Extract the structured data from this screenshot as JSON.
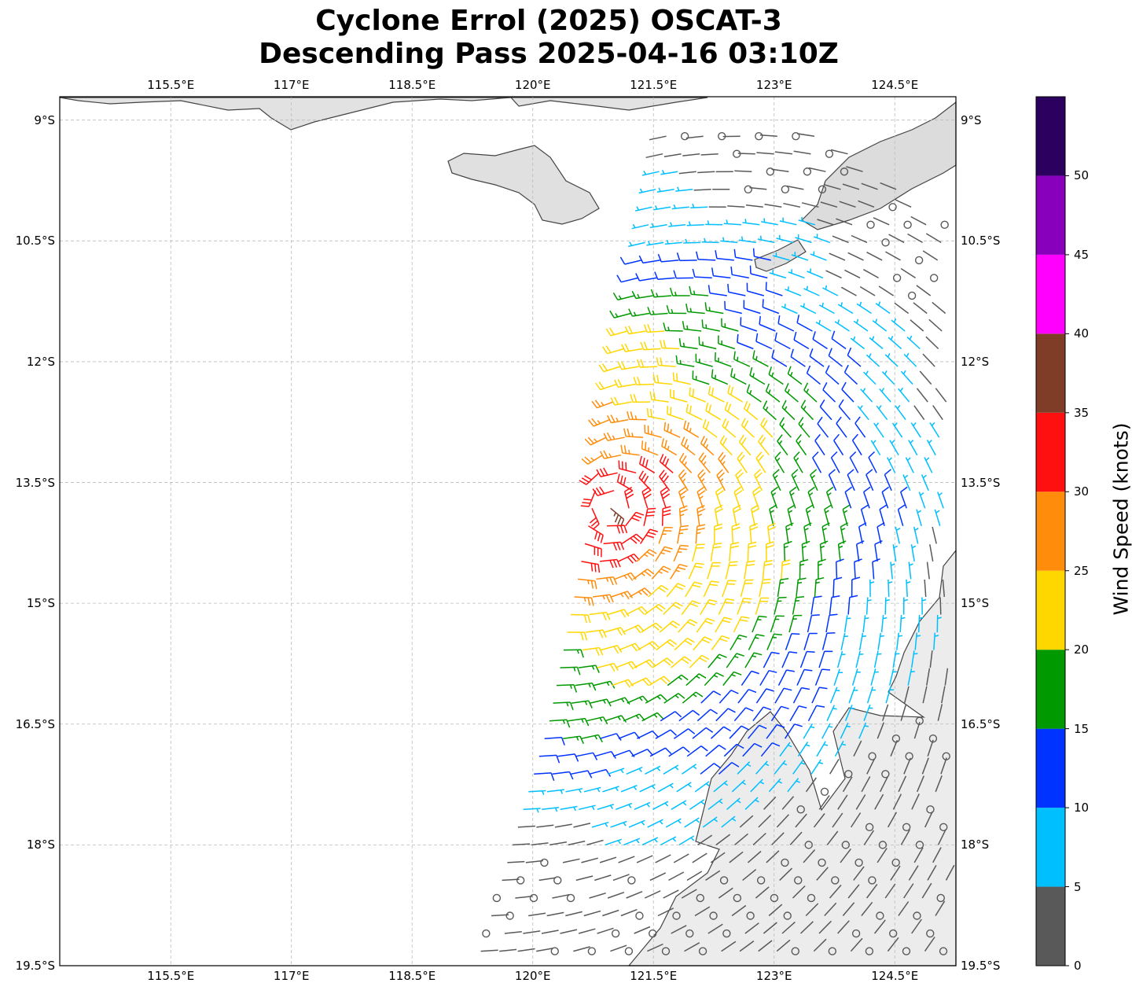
{
  "title": {
    "line1": "Cyclone Errol (2025) OSCAT-3",
    "line2": "Descending Pass 2025-04-16 03:10Z"
  },
  "map": {
    "lon_ticks": [
      115.5,
      117,
      118.5,
      120,
      121.5,
      123,
      124.5
    ],
    "lon_labels": [
      "115.5°E",
      "117°E",
      "118.5°E",
      "120°E",
      "121.5°E",
      "123°E",
      "124.5°E"
    ],
    "lat_ticks": [
      9,
      10.5,
      12,
      13.5,
      15,
      16.5,
      18,
      19.5
    ],
    "lat_labels": [
      "9°S",
      "10.5°S",
      "12°S",
      "13.5°S",
      "15°S",
      "16.5°S",
      "18°S",
      "19.5°S"
    ],
    "extent": {
      "lon_min": 114.12,
      "lon_max": 125.26,
      "lat_min": 8.71,
      "lat_max": 19.5
    },
    "storm_center": {
      "lon": 121.0,
      "lat": 13.8
    }
  },
  "colorbar": {
    "label": "Wind Speed (knots)",
    "range": [
      0,
      55
    ],
    "ticks": [
      "0",
      "5",
      "10",
      "15",
      "20",
      "25",
      "30",
      "35",
      "40",
      "45",
      "50"
    ],
    "colors": [
      "#595959",
      "#00bfff",
      "#0033ff",
      "#009900",
      "#ffd700",
      "#ff8c0a",
      "#ff1010",
      "#7f3d28",
      "#ff00ff",
      "#8800bb",
      "#2b005e"
    ]
  }
}
